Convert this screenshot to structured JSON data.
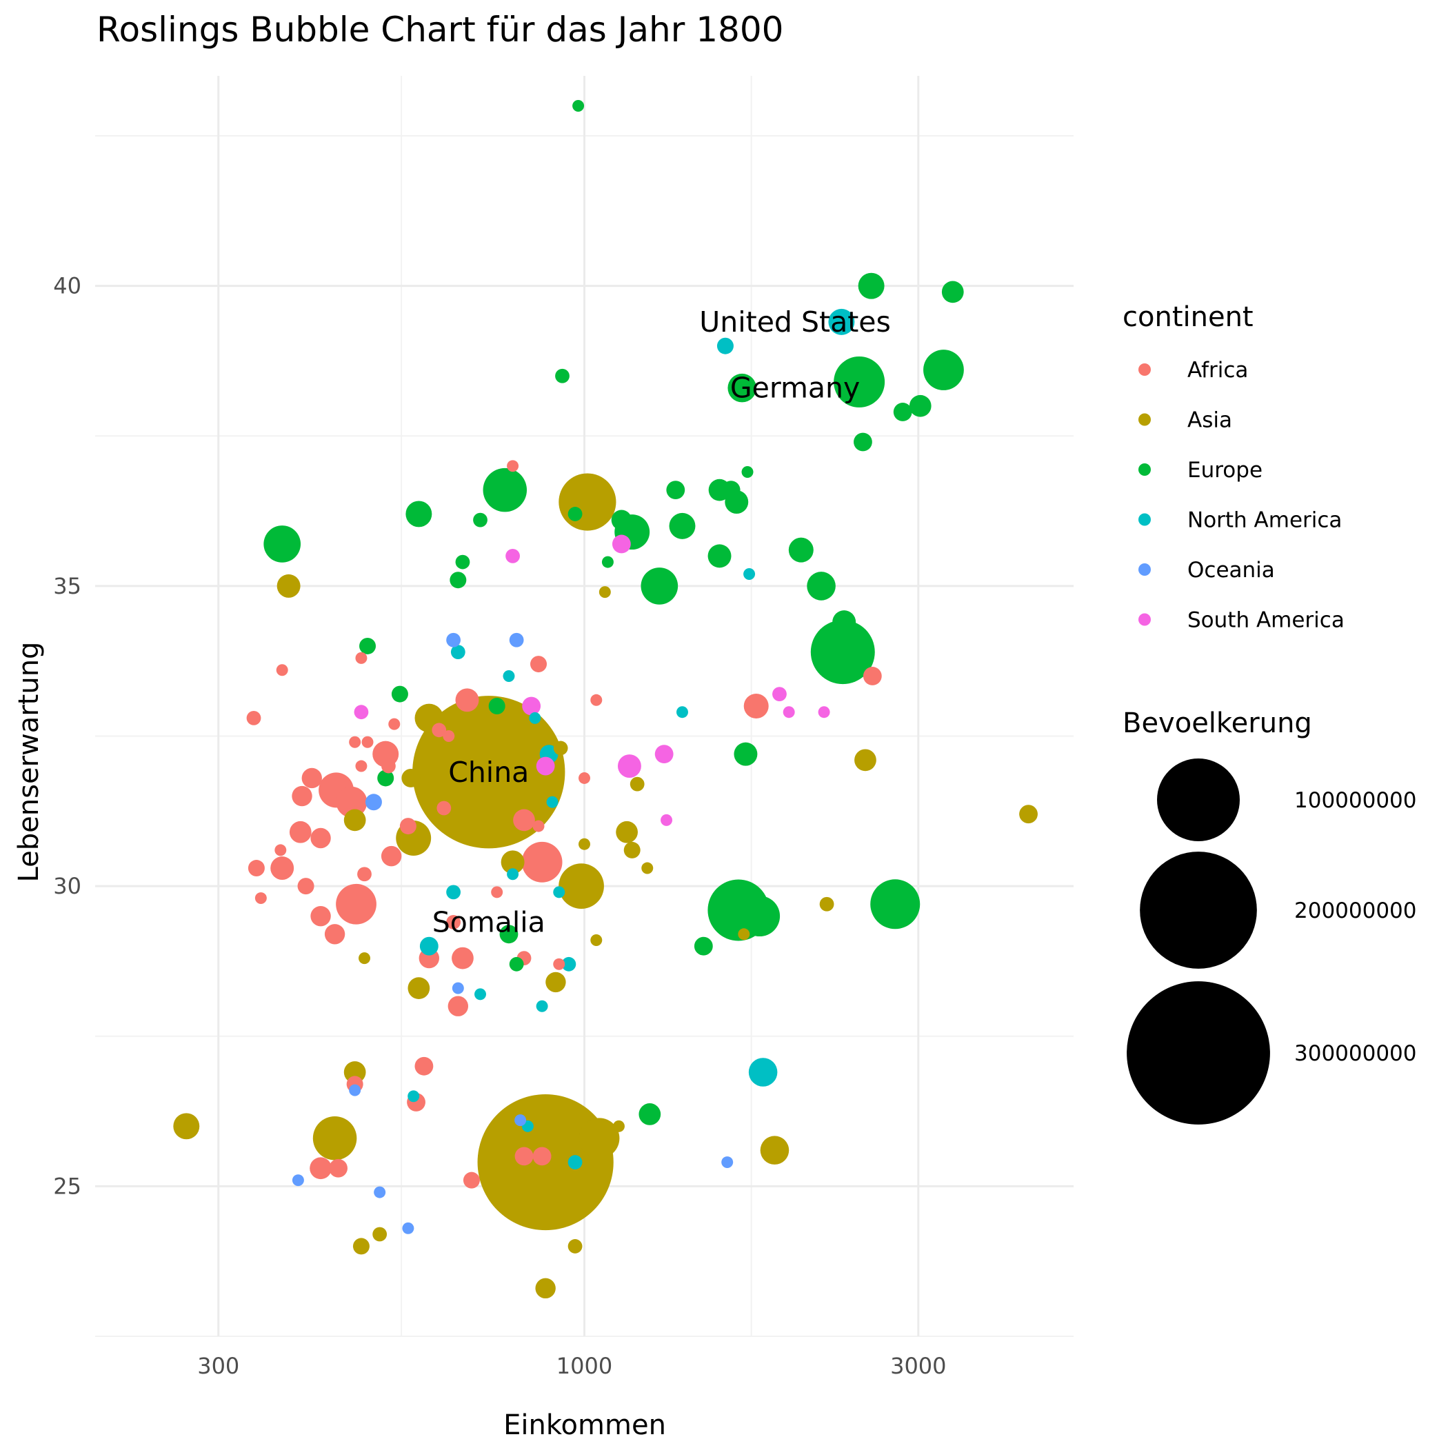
{
  "chart_data": {
    "type": "scatter",
    "title": "Roslings Bubble Chart für das Jahr 1800",
    "xlabel": "Einkommen",
    "ylabel": "Lebenserwartung",
    "x_scale": "log10",
    "xlim": [
      200,
      5000
    ],
    "ylim": [
      22.5,
      43.5
    ],
    "x_ticks": [
      300,
      1000,
      3000
    ],
    "x_tick_labels": [
      "300",
      "1000",
      "3000"
    ],
    "y_ticks": [
      25,
      30,
      35,
      40
    ],
    "y_tick_labels": [
      "25",
      "30",
      "35",
      "40"
    ],
    "grid": true,
    "colors": {
      "Africa": "#F8766D",
      "Asia": "#B79F00",
      "Europe": "#00BA38",
      "North America": "#00BFC4",
      "Oceania": "#619CFF",
      "South America": "#F564E3"
    },
    "color_legend": {
      "title": "continent",
      "entries": [
        "Africa",
        "Asia",
        "Europe",
        "North America",
        "Oceania",
        "South America"
      ],
      "position": "right"
    },
    "size_legend": {
      "title": "Bevoelkerung",
      "values": [
        100000000,
        200000000,
        300000000
      ],
      "labels": [
        "100000000",
        "200000000",
        "300000000"
      ],
      "position": "right"
    },
    "annotations": [
      {
        "text": "United States",
        "x": 2000,
        "y": 39.4
      },
      {
        "text": "Germany",
        "x": 2000,
        "y": 38.3
      },
      {
        "text": "China",
        "x": 730,
        "y": 31.9
      },
      {
        "text": "Somalia",
        "x": 730,
        "y": 29.4
      }
    ],
    "series": [
      {
        "name": "Africa",
        "points": [
          [
            337,
            32.8,
            3
          ],
          [
            340,
            30.3,
            4
          ],
          [
            345,
            29.8,
            2
          ],
          [
            370,
            33.6,
            2
          ],
          [
            368,
            30.6,
            2
          ],
          [
            370,
            30.3,
            8
          ],
          [
            395,
            31.5,
            6
          ],
          [
            393,
            30.9,
            7
          ],
          [
            400,
            30.0,
            4
          ],
          [
            408,
            31.8,
            6
          ],
          [
            420,
            30.8,
            6
          ],
          [
            420,
            29.5,
            6
          ],
          [
            440,
            29.2,
            6
          ],
          [
            442,
            31.6,
            18
          ],
          [
            470,
            32.4,
            2
          ],
          [
            465,
            31.4,
            14
          ],
          [
            472,
            29.7,
            24
          ],
          [
            480,
            33.8,
            2
          ],
          [
            480,
            32.0,
            2
          ],
          [
            485,
            30.2,
            3
          ],
          [
            490,
            32.4,
            2
          ],
          [
            520,
            32.2,
            10
          ],
          [
            525,
            32.0,
            3
          ],
          [
            530,
            30.5,
            6
          ],
          [
            535,
            32.7,
            2
          ],
          [
            560,
            31.0,
            4
          ],
          [
            575,
            26.4,
            5
          ],
          [
            590,
            27.0,
            5
          ],
          [
            600,
            28.8,
            6
          ],
          [
            620,
            32.6,
            3
          ],
          [
            630,
            31.3,
            3
          ],
          [
            650,
            29.4,
            3
          ],
          [
            660,
            28.0,
            6
          ],
          [
            670,
            28.8,
            7
          ],
          [
            680,
            33.1,
            8
          ],
          [
            750,
            29.9,
            2
          ],
          [
            790,
            37.0,
            2
          ],
          [
            820,
            28.8,
            3
          ],
          [
            820,
            31.1,
            7
          ],
          [
            860,
            31.0,
            2
          ],
          [
            860,
            33.7,
            4
          ],
          [
            870,
            30.4,
            24
          ],
          [
            870,
            25.5,
            5
          ],
          [
            920,
            28.7,
            2
          ],
          [
            1040,
            33.1,
            2
          ],
          [
            1760,
            33.0,
            9
          ],
          [
            2580,
            33.5,
            5
          ],
          [
            690,
            25.1,
            4
          ],
          [
            820,
            25.5,
            5
          ],
          [
            1000,
            31.8,
            2
          ],
          [
            640,
            32.5,
            2
          ],
          [
            445,
            25.3,
            5
          ],
          [
            420,
            25.3,
            7
          ],
          [
            470,
            26.7,
            4
          ]
        ]
      },
      {
        "name": "Asia",
        "points": [
          [
            270,
            26.0,
            10
          ],
          [
            378,
            35.0,
            8
          ],
          [
            440,
            25.8,
            28
          ],
          [
            470,
            26.9,
            7
          ],
          [
            470,
            31.1,
            7
          ],
          [
            480,
            24.0,
            4
          ],
          [
            485,
            28.8,
            2
          ],
          [
            510,
            24.2,
            3
          ],
          [
            565,
            31.8,
            5
          ],
          [
            570,
            30.8,
            18
          ],
          [
            580,
            28.3,
            7
          ],
          [
            600,
            32.8,
            12
          ],
          [
            730,
            31.9,
            340
          ],
          [
            790,
            30.4,
            8
          ],
          [
            880,
            25.4,
            270
          ],
          [
            880,
            23.3,
            6
          ],
          [
            910,
            28.4,
            6
          ],
          [
            925,
            32.3,
            3
          ],
          [
            970,
            24.0,
            3
          ],
          [
            990,
            30.0,
            30
          ],
          [
            1000,
            30.7,
            2
          ],
          [
            1010,
            36.4,
            48
          ],
          [
            1040,
            29.1,
            2
          ],
          [
            1050,
            25.8,
            24
          ],
          [
            1070,
            34.9,
            2
          ],
          [
            1120,
            26.0,
            2
          ],
          [
            1150,
            30.9,
            7
          ],
          [
            1170,
            30.6,
            4
          ],
          [
            1190,
            31.7,
            3
          ],
          [
            1230,
            30.3,
            2
          ],
          [
            1690,
            29.2,
            2
          ],
          [
            1870,
            25.6,
            12
          ],
          [
            2220,
            29.7,
            3
          ],
          [
            2520,
            32.1,
            7
          ],
          [
            4310,
            31.2,
            5
          ]
        ]
      },
      {
        "name": "Europe",
        "points": [
          [
            370,
            35.7,
            20
          ],
          [
            490,
            34.0,
            4
          ],
          [
            520,
            31.8,
            4
          ],
          [
            545,
            33.2,
            4
          ],
          [
            580,
            36.2,
            10
          ],
          [
            670,
            35.4,
            3
          ],
          [
            660,
            35.1,
            4
          ],
          [
            710,
            36.1,
            3
          ],
          [
            770,
            36.6,
            28
          ],
          [
            750,
            33.0,
            4
          ],
          [
            780,
            29.2,
            5
          ],
          [
            800,
            28.7,
            3
          ],
          [
            930,
            38.5,
            3
          ],
          [
            970,
            36.2,
            3
          ],
          [
            980,
            43.0,
            2
          ],
          [
            1080,
            35.4,
            2
          ],
          [
            1130,
            36.1,
            6
          ],
          [
            1170,
            35.9,
            18
          ],
          [
            1280,
            35.0,
            20
          ],
          [
            1350,
            36.6,
            5
          ],
          [
            1380,
            36.0,
            10
          ],
          [
            1480,
            29.0,
            5
          ],
          [
            1560,
            35.5,
            8
          ],
          [
            1560,
            36.6,
            7
          ],
          [
            1620,
            36.6,
            5
          ],
          [
            1650,
            36.4,
            8
          ],
          [
            1660,
            29.6,
            55
          ],
          [
            1680,
            38.3,
            12
          ],
          [
            1700,
            32.2,
            8
          ],
          [
            1710,
            36.9,
            2
          ],
          [
            1780,
            29.5,
            24
          ],
          [
            2040,
            35.6,
            9
          ],
          [
            2180,
            35.0,
            12
          ],
          [
            2340,
            33.9,
            60
          ],
          [
            2350,
            34.4,
            8
          ],
          [
            2470,
            38.4,
            38
          ],
          [
            2500,
            37.4,
            5
          ],
          [
            2570,
            40.0,
            10
          ],
          [
            2850,
            37.9,
            5
          ],
          [
            3020,
            38.0,
            7
          ],
          [
            2780,
            29.7,
            36
          ],
          [
            3260,
            38.6,
            24
          ],
          [
            3360,
            39.9,
            7
          ],
          [
            1240,
            26.2,
            7
          ]
        ]
      },
      {
        "name": "North America",
        "points": [
          [
            570,
            26.5,
            2
          ],
          [
            600,
            29.0,
            5
          ],
          [
            650,
            29.9,
            3
          ],
          [
            660,
            33.9,
            3
          ],
          [
            710,
            28.2,
            2
          ],
          [
            780,
            33.5,
            2
          ],
          [
            830,
            26.0,
            2
          ],
          [
            850,
            32.8,
            2
          ],
          [
            870,
            28.0,
            2
          ],
          [
            890,
            32.2,
            5
          ],
          [
            900,
            31.4,
            2
          ],
          [
            920,
            29.9,
            2
          ],
          [
            950,
            28.7,
            3
          ],
          [
            970,
            25.4,
            3
          ],
          [
            1590,
            39.0,
            4
          ],
          [
            1720,
            35.2,
            2
          ],
          [
            1800,
            26.9,
            12
          ],
          [
            2330,
            39.4,
            10
          ],
          [
            1380,
            32.9,
            2
          ],
          [
            790,
            30.2,
            2
          ]
        ]
      },
      {
        "name": "Oceania",
        "points": [
          [
            390,
            25.1,
            2
          ],
          [
            470,
            26.6,
            2
          ],
          [
            500,
            31.4,
            4
          ],
          [
            510,
            24.9,
            2
          ],
          [
            560,
            24.3,
            2
          ],
          [
            650,
            34.1,
            3
          ],
          [
            660,
            28.3,
            2
          ],
          [
            800,
            34.1,
            3
          ],
          [
            810,
            26.1,
            2
          ],
          [
            1600,
            25.4,
            2
          ]
        ]
      },
      {
        "name": "South America",
        "points": [
          [
            480,
            32.9,
            3
          ],
          [
            790,
            35.5,
            3
          ],
          [
            840,
            33.0,
            5
          ],
          [
            880,
            32.0,
            5
          ],
          [
            1130,
            35.7,
            5
          ],
          [
            1160,
            32.0,
            8
          ],
          [
            1300,
            32.2,
            5
          ],
          [
            1310,
            31.1,
            2
          ],
          [
            1900,
            33.2,
            3
          ],
          [
            1960,
            32.9,
            2
          ],
          [
            2200,
            32.9,
            2
          ]
        ]
      }
    ]
  }
}
